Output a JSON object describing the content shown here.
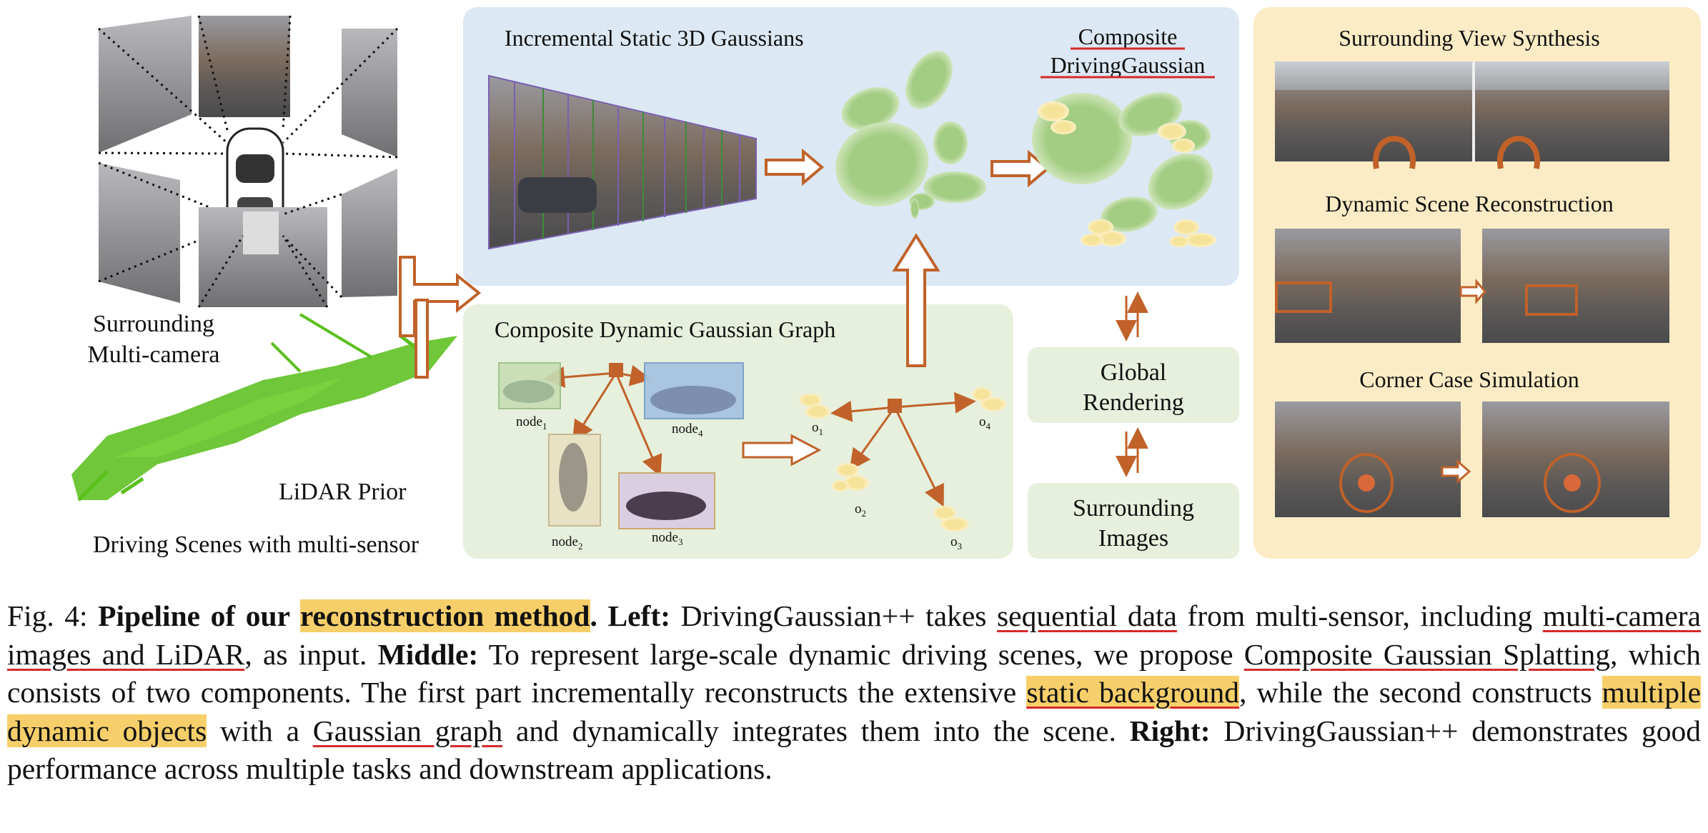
{
  "figure": {
    "left": {
      "camera_label_line1": "Surrounding",
      "camera_label_line2": "Multi-camera",
      "lidar_label": "LiDAR Prior",
      "scene_label": "Driving Scenes with multi-sensor"
    },
    "static_panel": {
      "title": "Incremental Static 3D Gaussians",
      "composite_line1": "Composite",
      "composite_line2": "DrivingGaussian"
    },
    "dynamic_panel": {
      "title": "Composite Dynamic Gaussian Graph",
      "nodes": [
        {
          "base": "node",
          "sub": "1"
        },
        {
          "base": "node",
          "sub": "2"
        },
        {
          "base": "node",
          "sub": "3"
        },
        {
          "base": "node",
          "sub": "4"
        }
      ],
      "objects": [
        {
          "base": "o",
          "sub": "1"
        },
        {
          "base": "o",
          "sub": "2"
        },
        {
          "base": "o",
          "sub": "3"
        },
        {
          "base": "o",
          "sub": "4"
        }
      ]
    },
    "render": {
      "global_line1": "Global",
      "global_line2": "Rendering",
      "images_line1": "Surrounding",
      "images_line2": "Images"
    },
    "right_panel": {
      "task1": "Surrounding View Synthesis",
      "task2": "Dynamic Scene Reconstruction",
      "task3": "Corner Case Simulation"
    },
    "colors": {
      "static_bg": "#dce8f3",
      "dynamic_bg": "#e6f0dc",
      "right_bg": "#fbecc5",
      "arrow": "#c0622a",
      "gaussian_green": "#a3cd82",
      "gaussian_yellow": "#f6e39a",
      "lidar_green": "#5bbf1e",
      "highlight": "#f7cf6a",
      "underline": "#d42a2a"
    }
  },
  "caption": {
    "fig_label": "Fig. 4:",
    "title_pre": "Pipeline of our ",
    "title_hl": "reconstruction method",
    "title_post": ".",
    "left_label": "Left:",
    "t1": " DrivingGaussian++ takes ",
    "u1": "sequential data",
    "t2": " from multi-sensor, including ",
    "u2": "multi-camera images and LiDAR",
    "t3": ", as input. ",
    "middle_label": "Middle:",
    "t4": " To represent large-scale dynamic driving scenes, we propose ",
    "u3": "Composite Gaussian Splatting",
    "t5": ", which consists of two components. The first part incrementally reconstructs the extensive ",
    "hu1": "static background",
    "t6": ", while the second constructs ",
    "h2": "multiple dynamic objects",
    "t7": " with a ",
    "u4": "Gaussian graph",
    "t8": " and dynamically integrates them into the scene. ",
    "right_label": "Right:",
    "t9": " DrivingGaussian++ demonstrates good performance across multiple tasks and downstream applications."
  }
}
